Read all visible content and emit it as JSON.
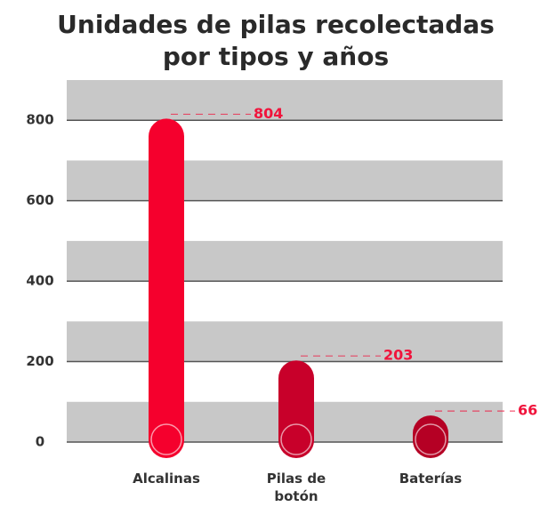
{
  "chart_data": {
    "type": "bar",
    "title": "Unidades de pilas recolectadas por tipos y años",
    "categories": [
      "Alcalinas",
      "Pilas de botón",
      "Baterías"
    ],
    "values": [
      804,
      203,
      66
    ],
    "colors": [
      "#f5002d",
      "#c8002a",
      "#b50024"
    ],
    "label_color": "#f0143c",
    "ylim": [
      0,
      900
    ],
    "yticks": [
      0,
      200,
      400,
      600,
      800
    ],
    "bands": [
      [
        0,
        100
      ],
      [
        200,
        300
      ],
      [
        400,
        500
      ],
      [
        600,
        700
      ],
      [
        800,
        900
      ]
    ],
    "band_color": "#c8c8c8",
    "grid": true
  }
}
